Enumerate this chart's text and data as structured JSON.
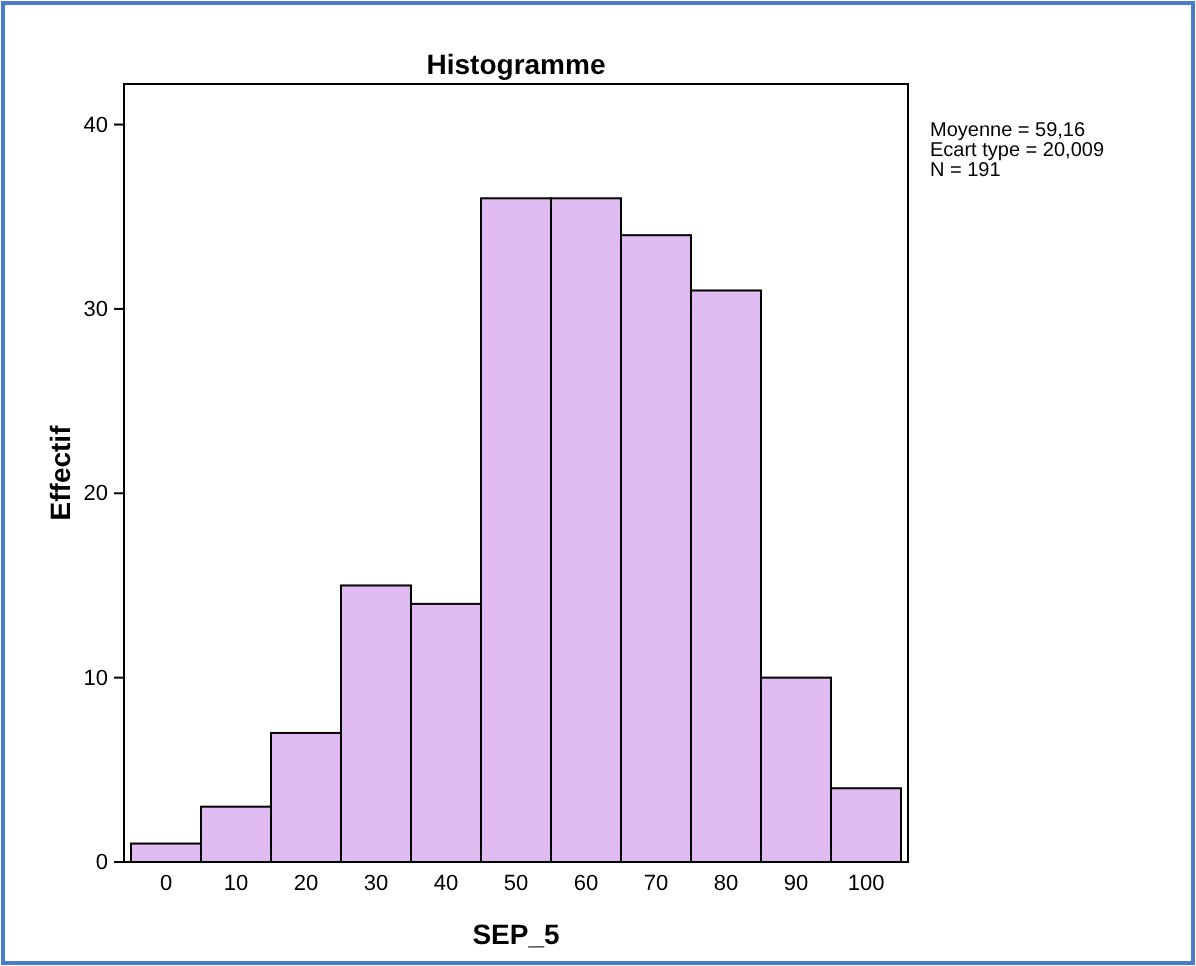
{
  "chart_data": {
    "type": "histogram",
    "title": "Histogramme",
    "xlabel": "SEP_5",
    "ylabel": "Effectif",
    "bins": [
      -5,
      5,
      15,
      25,
      35,
      45,
      55,
      65,
      75,
      85,
      95,
      105
    ],
    "values": [
      1,
      3,
      7,
      15,
      14,
      36,
      36,
      34,
      31,
      10,
      4
    ],
    "color": "#dfbbf2",
    "xlim": [
      -6,
      106
    ],
    "xticks": [
      0,
      10,
      20,
      30,
      40,
      50,
      60,
      70,
      80,
      90,
      100
    ],
    "ylim": [
      0,
      42.2
    ],
    "yticks": [
      0,
      10,
      20,
      30,
      40
    ],
    "annotations": [
      "Moyenne = 59,16",
      "Ecart type = 20,009",
      "N = 191"
    ],
    "grid": false
  }
}
